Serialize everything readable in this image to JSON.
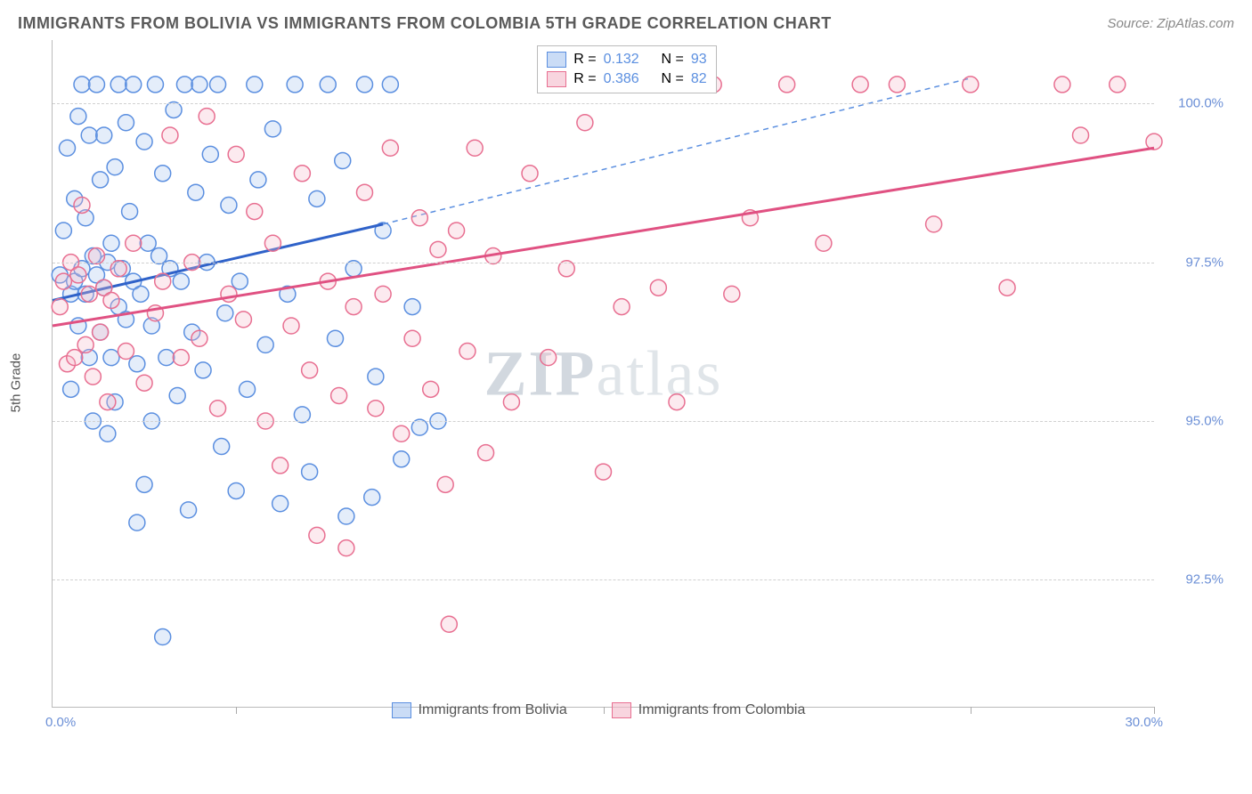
{
  "title": "IMMIGRANTS FROM BOLIVIA VS IMMIGRANTS FROM COLOMBIA 5TH GRADE CORRELATION CHART",
  "source": "Source: ZipAtlas.com",
  "ylabel": "5th Grade",
  "watermark_bold": "ZIP",
  "watermark_light": "atlas",
  "chart": {
    "type": "scatter",
    "xlim": [
      0,
      30
    ],
    "ylim": [
      90.5,
      101.0
    ],
    "yticks": [
      92.5,
      95.0,
      97.5,
      100.0
    ],
    "ytick_labels": [
      "92.5%",
      "95.0%",
      "97.5%",
      "100.0%"
    ],
    "xticks": [
      0,
      5,
      10,
      15,
      20,
      25,
      30
    ],
    "xmin_label": "0.0%",
    "xmax_label": "30.0%",
    "grid_color": "#d0d0d0",
    "axis_color": "#bbbbbb",
    "background": "#ffffff",
    "marker_radius": 9,
    "marker_stroke_width": 1.5,
    "marker_fill_opacity": 0.3,
    "series": [
      {
        "name": "Immigrants from Bolivia",
        "color_stroke": "#5b8fe0",
        "color_fill": "#a7c5f0",
        "R": 0.132,
        "N": 93,
        "trend": {
          "x1": 0,
          "y1": 96.9,
          "x2": 9,
          "y2": 98.1,
          "solid": true,
          "width": 3,
          "color": "#2f62c9"
        },
        "trend_ext": {
          "x1": 9,
          "y1": 98.1,
          "x2": 25,
          "y2": 100.4,
          "dashed": true,
          "width": 1.5,
          "color": "#5b8fe0"
        },
        "points": [
          [
            0.2,
            97.3
          ],
          [
            0.3,
            98.0
          ],
          [
            0.4,
            99.3
          ],
          [
            0.5,
            97.0
          ],
          [
            0.5,
            95.5
          ],
          [
            0.6,
            98.5
          ],
          [
            0.6,
            97.2
          ],
          [
            0.7,
            99.8
          ],
          [
            0.7,
            96.5
          ],
          [
            0.8,
            97.4
          ],
          [
            0.8,
            100.3
          ],
          [
            0.9,
            97.0
          ],
          [
            0.9,
            98.2
          ],
          [
            1.0,
            99.5
          ],
          [
            1.0,
            96.0
          ],
          [
            1.1,
            97.6
          ],
          [
            1.1,
            95.0
          ],
          [
            1.2,
            100.3
          ],
          [
            1.2,
            97.3
          ],
          [
            1.3,
            98.8
          ],
          [
            1.3,
            96.4
          ],
          [
            1.4,
            99.5
          ],
          [
            1.4,
            97.1
          ],
          [
            1.5,
            94.8
          ],
          [
            1.5,
            97.5
          ],
          [
            1.6,
            96.0
          ],
          [
            1.6,
            97.8
          ],
          [
            1.7,
            99.0
          ],
          [
            1.7,
            95.3
          ],
          [
            1.8,
            96.8
          ],
          [
            1.8,
            100.3
          ],
          [
            1.9,
            97.4
          ],
          [
            2.0,
            99.7
          ],
          [
            2.0,
            96.6
          ],
          [
            2.1,
            98.3
          ],
          [
            2.2,
            100.3
          ],
          [
            2.2,
            97.2
          ],
          [
            2.3,
            93.4
          ],
          [
            2.3,
            95.9
          ],
          [
            2.4,
            97.0
          ],
          [
            2.5,
            94.0
          ],
          [
            2.5,
            99.4
          ],
          [
            2.6,
            97.8
          ],
          [
            2.7,
            95.0
          ],
          [
            2.7,
            96.5
          ],
          [
            2.8,
            100.3
          ],
          [
            2.9,
            97.6
          ],
          [
            3.0,
            91.6
          ],
          [
            3.0,
            98.9
          ],
          [
            3.1,
            96.0
          ],
          [
            3.2,
            97.4
          ],
          [
            3.3,
            99.9
          ],
          [
            3.4,
            95.4
          ],
          [
            3.5,
            97.2
          ],
          [
            3.6,
            100.3
          ],
          [
            3.7,
            93.6
          ],
          [
            3.8,
            96.4
          ],
          [
            3.9,
            98.6
          ],
          [
            4.0,
            100.3
          ],
          [
            4.1,
            95.8
          ],
          [
            4.2,
            97.5
          ],
          [
            4.3,
            99.2
          ],
          [
            4.5,
            100.3
          ],
          [
            4.6,
            94.6
          ],
          [
            4.7,
            96.7
          ],
          [
            4.8,
            98.4
          ],
          [
            5.0,
            93.9
          ],
          [
            5.1,
            97.2
          ],
          [
            5.3,
            95.5
          ],
          [
            5.5,
            100.3
          ],
          [
            5.6,
            98.8
          ],
          [
            5.8,
            96.2
          ],
          [
            6.0,
            99.6
          ],
          [
            6.2,
            93.7
          ],
          [
            6.4,
            97.0
          ],
          [
            6.6,
            100.3
          ],
          [
            6.8,
            95.1
          ],
          [
            7.0,
            94.2
          ],
          [
            7.2,
            98.5
          ],
          [
            7.5,
            100.3
          ],
          [
            7.7,
            96.3
          ],
          [
            7.9,
            99.1
          ],
          [
            8.0,
            93.5
          ],
          [
            8.2,
            97.4
          ],
          [
            8.5,
            100.3
          ],
          [
            8.7,
            93.8
          ],
          [
            8.8,
            95.7
          ],
          [
            9.0,
            98.0
          ],
          [
            9.2,
            100.3
          ],
          [
            9.5,
            94.4
          ],
          [
            9.8,
            96.8
          ],
          [
            10.0,
            94.9
          ],
          [
            10.5,
            95.0
          ]
        ]
      },
      {
        "name": "Immigrants from Colombia",
        "color_stroke": "#e86f91",
        "color_fill": "#f4b9c9",
        "R": 0.386,
        "N": 82,
        "trend": {
          "x1": 0,
          "y1": 96.5,
          "x2": 30,
          "y2": 99.3,
          "solid": true,
          "width": 3,
          "color": "#e05182"
        },
        "points": [
          [
            0.2,
            96.8
          ],
          [
            0.3,
            97.2
          ],
          [
            0.4,
            95.9
          ],
          [
            0.5,
            97.5
          ],
          [
            0.6,
            96.0
          ],
          [
            0.7,
            97.3
          ],
          [
            0.8,
            98.4
          ],
          [
            0.9,
            96.2
          ],
          [
            1.0,
            97.0
          ],
          [
            1.1,
            95.7
          ],
          [
            1.2,
            97.6
          ],
          [
            1.3,
            96.4
          ],
          [
            1.4,
            97.1
          ],
          [
            1.5,
            95.3
          ],
          [
            1.6,
            96.9
          ],
          [
            1.8,
            97.4
          ],
          [
            2.0,
            96.1
          ],
          [
            2.2,
            97.8
          ],
          [
            2.5,
            95.6
          ],
          [
            2.8,
            96.7
          ],
          [
            3.0,
            97.2
          ],
          [
            3.2,
            99.5
          ],
          [
            3.5,
            96.0
          ],
          [
            3.8,
            97.5
          ],
          [
            4.0,
            96.3
          ],
          [
            4.2,
            99.8
          ],
          [
            4.5,
            95.2
          ],
          [
            4.8,
            97.0
          ],
          [
            5.0,
            99.2
          ],
          [
            5.2,
            96.6
          ],
          [
            5.5,
            98.3
          ],
          [
            5.8,
            95.0
          ],
          [
            6.0,
            97.8
          ],
          [
            6.2,
            94.3
          ],
          [
            6.5,
            96.5
          ],
          [
            6.8,
            98.9
          ],
          [
            7.0,
            95.8
          ],
          [
            7.2,
            93.2
          ],
          [
            7.5,
            97.2
          ],
          [
            7.8,
            95.4
          ],
          [
            8.0,
            93.0
          ],
          [
            8.2,
            96.8
          ],
          [
            8.5,
            98.6
          ],
          [
            8.8,
            95.2
          ],
          [
            9.0,
            97.0
          ],
          [
            9.2,
            99.3
          ],
          [
            9.5,
            94.8
          ],
          [
            9.8,
            96.3
          ],
          [
            10.0,
            98.2
          ],
          [
            10.3,
            95.5
          ],
          [
            10.5,
            97.7
          ],
          [
            10.7,
            94.0
          ],
          [
            10.8,
            91.8
          ],
          [
            11.0,
            98.0
          ],
          [
            11.3,
            96.1
          ],
          [
            11.5,
            99.3
          ],
          [
            11.8,
            94.5
          ],
          [
            12.0,
            97.6
          ],
          [
            12.5,
            95.3
          ],
          [
            13.0,
            98.9
          ],
          [
            13.5,
            96.0
          ],
          [
            14.0,
            97.4
          ],
          [
            14.5,
            99.7
          ],
          [
            15.0,
            94.2
          ],
          [
            15.5,
            96.8
          ],
          [
            16.0,
            100.3
          ],
          [
            16.5,
            97.1
          ],
          [
            17.0,
            95.3
          ],
          [
            18.0,
            100.3
          ],
          [
            18.5,
            97.0
          ],
          [
            19.0,
            98.2
          ],
          [
            20.0,
            100.3
          ],
          [
            21.0,
            97.8
          ],
          [
            22.0,
            100.3
          ],
          [
            23.0,
            100.3
          ],
          [
            24.0,
            98.1
          ],
          [
            25.0,
            100.3
          ],
          [
            26.0,
            97.1
          ],
          [
            27.5,
            100.3
          ],
          [
            28.0,
            99.5
          ],
          [
            29.0,
            100.3
          ],
          [
            30.0,
            99.4
          ]
        ]
      }
    ]
  },
  "legend_top": {
    "r_label": "R =",
    "n_label": "N ="
  },
  "legend_bottom": [
    {
      "label": "Immigrants from Bolivia",
      "stroke": "#5b8fe0",
      "fill": "#a7c5f0"
    },
    {
      "label": "Immigrants from Colombia",
      "stroke": "#e86f91",
      "fill": "#f4b9c9"
    }
  ]
}
